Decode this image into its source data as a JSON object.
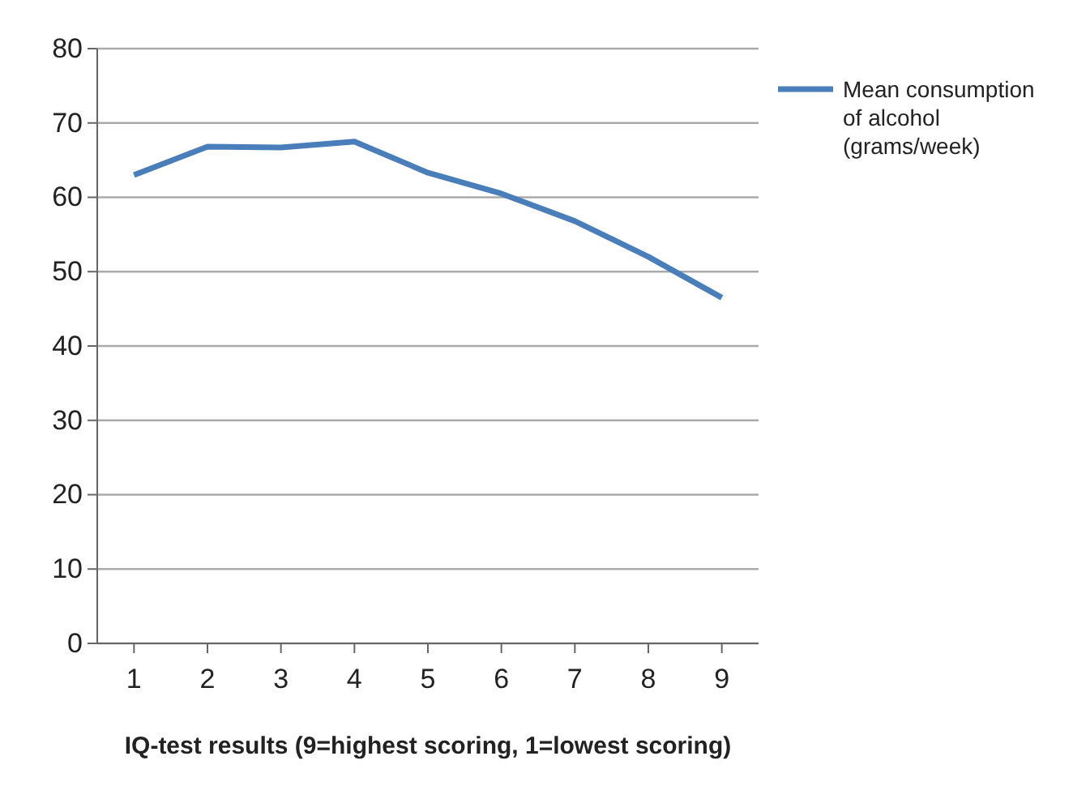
{
  "chart_data": {
    "type": "line",
    "xlabel": "IQ-test results (9=highest scoring, 1=lowest scoring)",
    "categories": [
      "1",
      "2",
      "3",
      "4",
      "5",
      "6",
      "7",
      "8",
      "9"
    ],
    "series": [
      {
        "name": "Mean consumption of alcohol (grams/week)",
        "color": "#4a7ebb",
        "values": [
          63,
          66.8,
          66.7,
          67.5,
          63.3,
          60.5,
          56.8,
          52,
          46.5
        ]
      }
    ],
    "ylim": [
      0,
      80
    ],
    "yticks": [
      0,
      10,
      20,
      30,
      40,
      50,
      60,
      70,
      80
    ],
    "grid": "y",
    "legend": "top right",
    "marker": "none",
    "line_style": "solid"
  }
}
